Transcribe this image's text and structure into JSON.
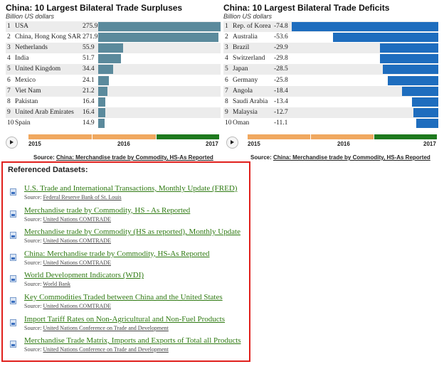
{
  "surpluses": {
    "title": "China: 10 Largest Bilateral Trade Surpluses",
    "subtitle": "Billion US dollars",
    "color": "#5b8a9c",
    "rows": [
      {
        "rank": "1",
        "label": "USA",
        "value": "275.9"
      },
      {
        "rank": "2",
        "label": "China, Hong Kong SAR",
        "value": "271.9"
      },
      {
        "rank": "3",
        "label": "Netherlands",
        "value": "55.9"
      },
      {
        "rank": "4",
        "label": "India",
        "value": "51.7"
      },
      {
        "rank": "5",
        "label": "United Kingdom",
        "value": "34.4"
      },
      {
        "rank": "6",
        "label": "Mexico",
        "value": "24.1"
      },
      {
        "rank": "7",
        "label": "Viet Nam",
        "value": "21.2"
      },
      {
        "rank": "8",
        "label": "Pakistan",
        "value": "16.4"
      },
      {
        "rank": "9",
        "label": "United Arab Emirates",
        "value": "16.4"
      },
      {
        "rank": "10",
        "label": "Spain",
        "value": "14.9"
      }
    ],
    "timeline": {
      "start": "2015",
      "mid": "2016",
      "end": "2017"
    },
    "source_prefix": "Source: ",
    "source_link": "China: Merchandise trade by Commodity, HS-As Reported"
  },
  "deficits": {
    "title": "China: 10 Largest Bilateral Trade Deficits",
    "subtitle": "Billion US dollars",
    "color": "#1e6dbe",
    "rows": [
      {
        "rank": "1",
        "label": "Rep. of Korea",
        "value": "-74.8"
      },
      {
        "rank": "2",
        "label": "Australia",
        "value": "-53.6"
      },
      {
        "rank": "3",
        "label": "Brazil",
        "value": "-29.9"
      },
      {
        "rank": "4",
        "label": "Switzerland",
        "value": "-29.8"
      },
      {
        "rank": "5",
        "label": "Japan",
        "value": "-28.5"
      },
      {
        "rank": "6",
        "label": "Germany",
        "value": "-25.8"
      },
      {
        "rank": "7",
        "label": "Angola",
        "value": "-18.4"
      },
      {
        "rank": "8",
        "label": "Saudi Arabia",
        "value": "-13.4"
      },
      {
        "rank": "9",
        "label": "Malaysia",
        "value": "-12.7"
      },
      {
        "rank": "10",
        "label": "Oman",
        "value": "-11.1"
      }
    ],
    "timeline": {
      "start": "2015",
      "mid": "2016",
      "end": "2017"
    },
    "source_prefix": "Source: ",
    "source_link": "China: Merchandise trade by Commodity, HS-As Reported"
  },
  "timeline_colors": {
    "orange": "#f0a860",
    "green": "#1e7a1e"
  },
  "references": {
    "title": "Referenced Datasets:",
    "source_prefix": "Source: ",
    "items": [
      {
        "title": "U.S. Trade and International Transactions, Monthly Update (FRED)",
        "source": "Federal Reserve Bank of St. Louis"
      },
      {
        "title": "Merchandise trade by Commodity, HS - As Reported",
        "source": "United Nations COMTRADE"
      },
      {
        "title": "Merchandise trade by Commodity (HS as reported), Monthly Update",
        "source": "United Nations COMTRADE"
      },
      {
        "title": "China: Merchandise trade by Commodity, HS-As Reported",
        "source": "United Nations COMTRADE"
      },
      {
        "title": "World Development Indicators (WDI)",
        "source": "World Bank"
      },
      {
        "title": "Key Commodities Traded between China and the United States",
        "source": "United Nations COMTRADE"
      },
      {
        "title": "Import Tariff Rates on Non-Agricultural and Non-Fuel Products",
        "source": "United Nations Conference on Trade and Development"
      },
      {
        "title": "Merchandise Trade Matrix, Imports and Exports of Total all Products",
        "source": "United Nations Conference on Trade and Development"
      }
    ]
  }
}
